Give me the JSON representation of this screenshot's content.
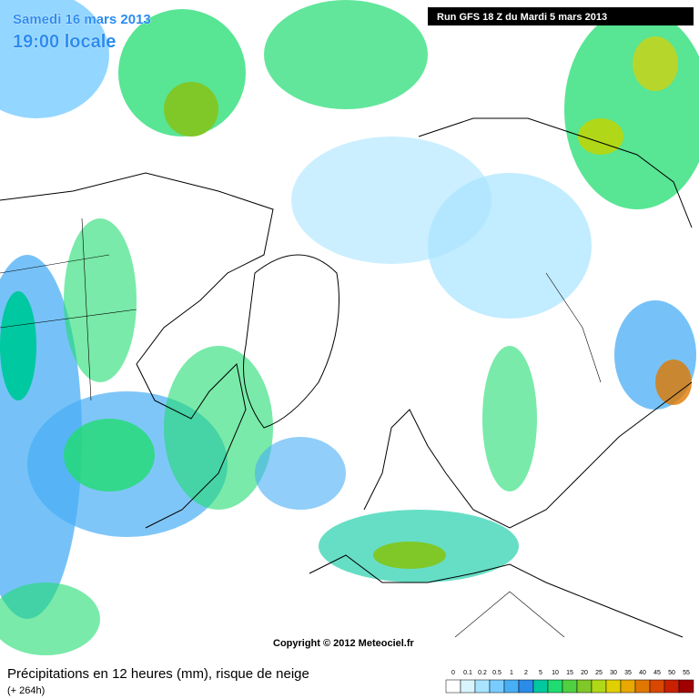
{
  "header": {
    "date": "Samedi 16 mars 2013",
    "time": "19:00 locale",
    "run": "Run GFS 18 Z du Mardi 5 mars 2013"
  },
  "copyright": "Copyright © 2012 Meteociel.fr",
  "footer": {
    "title": "Précipitations en 12 heures (mm), risque de neige",
    "lead": "(+ 264h)"
  },
  "legend": {
    "labels": [
      0,
      0.1,
      0.2,
      0.5,
      1,
      2,
      5,
      10,
      15,
      20,
      25,
      30,
      35,
      40,
      45,
      50,
      55
    ],
    "colors": [
      "#ffffff",
      "#d8f4ff",
      "#a8e4ff",
      "#78ccff",
      "#48aef5",
      "#2a8ce8",
      "#00c8a0",
      "#20dc70",
      "#50d040",
      "#80c828",
      "#b0d818",
      "#e0d000",
      "#e8a800",
      "#e07800",
      "#d84800",
      "#c82000",
      "#a00000"
    ]
  }
}
